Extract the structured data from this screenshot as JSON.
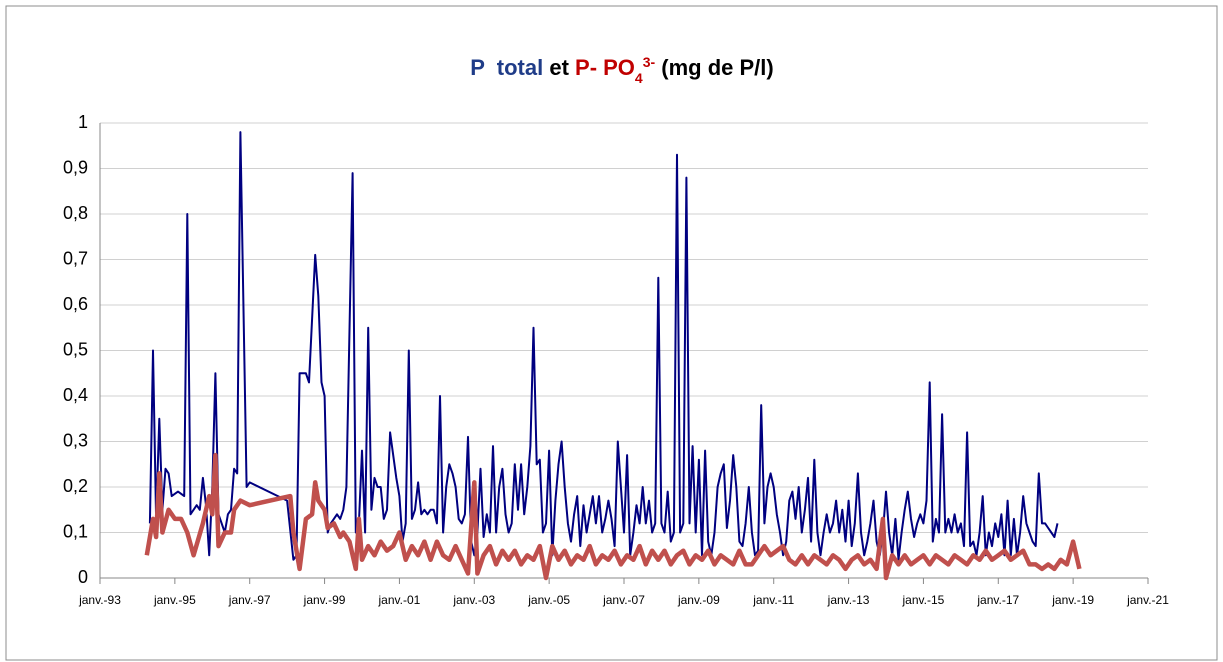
{
  "chart_data": {
    "type": "line",
    "title": [
      {
        "text": "P  total",
        "color": "#1f3c88"
      },
      {
        "text": " et ",
        "color": "#000000"
      },
      {
        "text": "P- PO",
        "color": "#c00000"
      },
      {
        "text": "4",
        "color": "#c00000",
        "shift": "sub"
      },
      {
        "text": "3-",
        "color": "#c00000",
        "shift": "super"
      },
      {
        "text": " (mg de P/l)",
        "color": "#000000"
      }
    ],
    "xlim": [
      "1993-01",
      "2021-01"
    ],
    "xticks": [
      {
        "value": "1993-01",
        "label": "janv.-93"
      },
      {
        "value": "1995-01",
        "label": "janv.-95"
      },
      {
        "value": "1997-01",
        "label": "janv.-97"
      },
      {
        "value": "1999-01",
        "label": "janv.-99"
      },
      {
        "value": "2001-01",
        "label": "janv.-01"
      },
      {
        "value": "2003-01",
        "label": "janv.-03"
      },
      {
        "value": "2005-01",
        "label": "janv.-05"
      },
      {
        "value": "2007-01",
        "label": "janv.-07"
      },
      {
        "value": "2009-01",
        "label": "janv.-09"
      },
      {
        "value": "2011-01",
        "label": "janv.-11"
      },
      {
        "value": "2013-01",
        "label": "janv.-13"
      },
      {
        "value": "2015-01",
        "label": "janv.-15"
      },
      {
        "value": "2017-01",
        "label": "janv.-17"
      },
      {
        "value": "2019-01",
        "label": "janv.-19"
      },
      {
        "value": "2021-01",
        "label": "janv.-21"
      }
    ],
    "ylim": [
      0,
      1
    ],
    "yticks": [
      0,
      {
        "value": 0.1,
        "label": "0,1"
      },
      {
        "value": 0.2,
        "label": "0,2"
      },
      {
        "value": 0.3,
        "label": "0,3"
      },
      {
        "value": 0.4,
        "label": "0,4"
      },
      {
        "value": 0.5,
        "label": "0,5"
      },
      {
        "value": 0.6,
        "label": "0,6"
      },
      {
        "value": 0.7,
        "label": "0,7"
      },
      {
        "value": 0.8,
        "label": "0,8"
      },
      {
        "value": 0.9,
        "label": "0,9"
      },
      1
    ],
    "grid": true,
    "series": [
      {
        "color": "#000080",
        "width": 2,
        "x": [
          "1994-05",
          "1994-06",
          "1994-07",
          "1994-08",
          "1994-09",
          "1994-10",
          "1994-11",
          "1994-12",
          "1995-02",
          "1995-04",
          "1995-05",
          "1995-06",
          "1995-08",
          "1995-09",
          "1995-10",
          "1995-11",
          "1995-12",
          "1996-01",
          "1996-02",
          "1996-03",
          "1996-05",
          "1996-06",
          "1996-07",
          "1996-08",
          "1996-09",
          "1996-10",
          "1996-12",
          "1997-01",
          "1998-01",
          "1998-03",
          "1998-04",
          "1998-05",
          "1998-07",
          "1998-08",
          "1998-10",
          "1998-11",
          "1998-12",
          "1999-01",
          "1999-02",
          "1999-03",
          "1999-05",
          "1999-06",
          "1999-07",
          "1999-08",
          "1999-10",
          "1999-11",
          "1999-12",
          "2000-01",
          "2000-02",
          "2000-03",
          "2000-04",
          "2000-05",
          "2000-06",
          "2000-07",
          "2000-08",
          "2000-09",
          "2000-10",
          "2000-12",
          "2001-01",
          "2001-02",
          "2001-03",
          "2001-04",
          "2001-05",
          "2001-06",
          "2001-07",
          "2001-08",
          "2001-09",
          "2001-10",
          "2001-11",
          "2001-12",
          "2002-01",
          "2002-02",
          "2002-03",
          "2002-04",
          "2002-05",
          "2002-06",
          "2002-07",
          "2002-08",
          "2002-09",
          "2002-10",
          "2002-11",
          "2002-12",
          "2003-01",
          "2003-02",
          "2003-03",
          "2003-04",
          "2003-05",
          "2003-06",
          "2003-07",
          "2003-08",
          "2003-09",
          "2003-10",
          "2003-11",
          "2003-12",
          "2004-01",
          "2004-02",
          "2004-03",
          "2004-04",
          "2004-05",
          "2004-06",
          "2004-07",
          "2004-08",
          "2004-09",
          "2004-10",
          "2004-11",
          "2004-12",
          "2005-01",
          "2005-02",
          "2005-03",
          "2005-04",
          "2005-05",
          "2005-06",
          "2005-07",
          "2005-08",
          "2005-09",
          "2005-10",
          "2005-11",
          "2005-12",
          "2006-01",
          "2006-02",
          "2006-03",
          "2006-04",
          "2006-05",
          "2006-06",
          "2006-07",
          "2006-08",
          "2006-09",
          "2006-10",
          "2006-11",
          "2006-12",
          "2007-01",
          "2007-02",
          "2007-03",
          "2007-04",
          "2007-05",
          "2007-06",
          "2007-07",
          "2007-08",
          "2007-09",
          "2007-10",
          "2007-11",
          "2007-12",
          "2008-01",
          "2008-02",
          "2008-03",
          "2008-04",
          "2008-05",
          "2008-06",
          "2008-07",
          "2008-08",
          "2008-09",
          "2008-10",
          "2008-11",
          "2008-12",
          "2009-01",
          "2009-02",
          "2009-03",
          "2009-04",
          "2009-05",
          "2009-06",
          "2009-07",
          "2009-08",
          "2009-09",
          "2009-10",
          "2009-11",
          "2009-12",
          "2010-01",
          "2010-02",
          "2010-03",
          "2010-04",
          "2010-05",
          "2010-06",
          "2010-07",
          "2010-08",
          "2010-09",
          "2010-10",
          "2010-11",
          "2010-12",
          "2011-01",
          "2011-02",
          "2011-03",
          "2011-04",
          "2011-05",
          "2011-06",
          "2011-07",
          "2011-08",
          "2011-09",
          "2011-10",
          "2011-11",
          "2011-12",
          "2012-01",
          "2012-02",
          "2012-03",
          "2012-04",
          "2012-05",
          "2012-06",
          "2012-07",
          "2012-08",
          "2012-09",
          "2012-10",
          "2012-11",
          "2012-12",
          "2013-01",
          "2013-02",
          "2013-03",
          "2013-04",
          "2013-05",
          "2013-06",
          "2013-07",
          "2013-08",
          "2013-09",
          "2013-10",
          "2013-11",
          "2013-12",
          "2014-01",
          "2014-02",
          "2014-03",
          "2014-04",
          "2014-05",
          "2014-06",
          "2014-07",
          "2014-08",
          "2014-09",
          "2014-10",
          "2014-11",
          "2014-12",
          "2015-01",
          "2015-02",
          "2015-03",
          "2015-04",
          "2015-05",
          "2015-06",
          "2015-07",
          "2015-08",
          "2015-09",
          "2015-10",
          "2015-11",
          "2015-12",
          "2016-01",
          "2016-02",
          "2016-03",
          "2016-04",
          "2016-05",
          "2016-06",
          "2016-07",
          "2016-08",
          "2016-09",
          "2016-10",
          "2016-11",
          "2016-12",
          "2017-01",
          "2017-02",
          "2017-03",
          "2017-04",
          "2017-05",
          "2017-06",
          "2017-07",
          "2017-08",
          "2017-09",
          "2017-10",
          "2017-11",
          "2017-12",
          "2018-01",
          "2018-02",
          "2018-03",
          "2018-04",
          "2018-05",
          "2018-06",
          "2018-07",
          "2018-08"
        ],
        "values": [
          0.12,
          0.5,
          0.13,
          0.35,
          0.15,
          0.24,
          0.23,
          0.18,
          0.19,
          0.18,
          0.8,
          0.14,
          0.16,
          0.15,
          0.22,
          0.16,
          0.05,
          0.2,
          0.45,
          0.14,
          0.1,
          0.14,
          0.15,
          0.24,
          0.23,
          0.98,
          0.2,
          0.21,
          0.17,
          0.04,
          0.05,
          0.45,
          0.45,
          0.43,
          0.71,
          0.62,
          0.43,
          0.4,
          0.1,
          0.12,
          0.14,
          0.13,
          0.15,
          0.2,
          0.89,
          0.1,
          0.12,
          0.28,
          0.1,
          0.55,
          0.15,
          0.22,
          0.2,
          0.2,
          0.13,
          0.15,
          0.32,
          0.22,
          0.18,
          0.08,
          0.12,
          0.5,
          0.13,
          0.15,
          0.21,
          0.14,
          0.15,
          0.14,
          0.15,
          0.15,
          0.12,
          0.4,
          0.1,
          0.2,
          0.25,
          0.23,
          0.2,
          0.13,
          0.12,
          0.14,
          0.31,
          0.08,
          0.05,
          0.1,
          0.24,
          0.09,
          0.14,
          0.1,
          0.29,
          0.1,
          0.2,
          0.24,
          0.14,
          0.1,
          0.12,
          0.25,
          0.15,
          0.25,
          0.14,
          0.2,
          0.29,
          0.55,
          0.25,
          0.26,
          0.1,
          0.12,
          0.28,
          0.05,
          0.17,
          0.25,
          0.3,
          0.2,
          0.12,
          0.08,
          0.14,
          0.18,
          0.07,
          0.16,
          0.1,
          0.14,
          0.18,
          0.12,
          0.18,
          0.1,
          0.13,
          0.17,
          0.13,
          0.07,
          0.3,
          0.2,
          0.1,
          0.27,
          0.05,
          0.1,
          0.16,
          0.12,
          0.2,
          0.12,
          0.17,
          0.1,
          0.12,
          0.66,
          0.12,
          0.1,
          0.19,
          0.08,
          0.1,
          0.93,
          0.1,
          0.12,
          0.88,
          0.12,
          0.29,
          0.1,
          0.26,
          0.05,
          0.28,
          0.08,
          0.05,
          0.1,
          0.2,
          0.23,
          0.25,
          0.11,
          0.17,
          0.27,
          0.2,
          0.08,
          0.07,
          0.12,
          0.2,
          0.1,
          0.05,
          0.06,
          0.38,
          0.12,
          0.2,
          0.23,
          0.2,
          0.14,
          0.1,
          0.05,
          0.08,
          0.17,
          0.19,
          0.13,
          0.2,
          0.1,
          0.15,
          0.22,
          0.08,
          0.26,
          0.1,
          0.05,
          0.1,
          0.14,
          0.1,
          0.12,
          0.17,
          0.1,
          0.15,
          0.08,
          0.17,
          0.07,
          0.12,
          0.23,
          0.1,
          0.05,
          0.08,
          0.12,
          0.17,
          0.08,
          0.05,
          0.1,
          0.19,
          0.1,
          0.05,
          0.13,
          0.04,
          0.1,
          0.15,
          0.19,
          0.13,
          0.09,
          0.12,
          0.14,
          0.12,
          0.17,
          0.43,
          0.08,
          0.13,
          0.1,
          0.36,
          0.1,
          0.13,
          0.1,
          0.14,
          0.1,
          0.12,
          0.07,
          0.32,
          0.07,
          0.08,
          0.05,
          0.1,
          0.18,
          0.05,
          0.1,
          0.07,
          0.12,
          0.09,
          0.14,
          0.05,
          0.17,
          0.05,
          0.13,
          0.05,
          0.1,
          0.18,
          0.12,
          0.1,
          0.08,
          0.07,
          0.23,
          0.12,
          0.12,
          0.11,
          0.1,
          0.09,
          0.12
        ]
      },
      {
        "color": "#c0504d",
        "width": 4.5,
        "x": [
          "1994-04",
          "1994-06",
          "1994-07",
          "1994-08",
          "1994-09",
          "1994-11",
          "1995-01",
          "1995-03",
          "1995-05",
          "1995-07",
          "1995-10",
          "1995-12",
          "1996-01",
          "1996-02",
          "1996-03",
          "1996-05",
          "1996-07",
          "1996-08",
          "1996-10",
          "1997-01",
          "1998-02",
          "1998-03",
          "1998-04",
          "1998-05",
          "1998-07",
          "1998-09",
          "1998-10",
          "1998-11",
          "1999-01",
          "1999-02",
          "1999-04",
          "1999-06",
          "1999-07",
          "1999-09",
          "1999-11",
          "1999-12",
          "2000-01",
          "2000-03",
          "2000-05",
          "2000-07",
          "2000-09",
          "2000-11",
          "2001-01",
          "2001-03",
          "2001-05",
          "2001-07",
          "2001-09",
          "2001-11",
          "2002-01",
          "2002-03",
          "2002-05",
          "2002-07",
          "2002-09",
          "2002-11",
          "2003-01",
          "2003-02",
          "2003-04",
          "2003-06",
          "2003-08",
          "2003-10",
          "2003-12",
          "2004-02",
          "2004-04",
          "2004-06",
          "2004-08",
          "2004-10",
          "2004-12",
          "2005-02",
          "2005-04",
          "2005-06",
          "2005-08",
          "2005-10",
          "2005-12",
          "2006-02",
          "2006-04",
          "2006-06",
          "2006-08",
          "2006-10",
          "2006-12",
          "2007-02",
          "2007-04",
          "2007-06",
          "2007-08",
          "2007-10",
          "2007-12",
          "2008-02",
          "2008-04",
          "2008-06",
          "2008-08",
          "2008-10",
          "2008-12",
          "2009-02",
          "2009-04",
          "2009-06",
          "2009-08",
          "2009-10",
          "2009-12",
          "2010-02",
          "2010-04",
          "2010-06",
          "2010-08",
          "2010-10",
          "2010-12",
          "2011-02",
          "2011-04",
          "2011-06",
          "2011-08",
          "2011-10",
          "2011-12",
          "2012-02",
          "2012-04",
          "2012-06",
          "2012-08",
          "2012-10",
          "2012-12",
          "2013-02",
          "2013-04",
          "2013-06",
          "2013-08",
          "2013-10",
          "2013-12",
          "2014-01",
          "2014-03",
          "2014-05",
          "2014-07",
          "2014-09",
          "2014-11",
          "2015-01",
          "2015-03",
          "2015-05",
          "2015-07",
          "2015-09",
          "2015-11",
          "2016-01",
          "2016-03",
          "2016-05",
          "2016-07",
          "2016-09",
          "2016-11",
          "2017-01",
          "2017-03",
          "2017-05",
          "2017-07",
          "2017-09",
          "2017-11",
          "2018-01",
          "2018-03",
          "2018-05",
          "2018-07",
          "2018-09",
          "2018-11",
          "2019-01",
          "2019-03"
        ],
        "values": [
          0.05,
          0.13,
          0.09,
          0.23,
          0.1,
          0.15,
          0.13,
          0.13,
          0.1,
          0.05,
          0.12,
          0.18,
          0.14,
          0.27,
          0.07,
          0.1,
          0.1,
          0.15,
          0.17,
          0.16,
          0.18,
          0.1,
          0.06,
          0.02,
          0.13,
          0.14,
          0.21,
          0.17,
          0.15,
          0.11,
          0.12,
          0.09,
          0.1,
          0.08,
          0.02,
          0.13,
          0.04,
          0.07,
          0.05,
          0.08,
          0.06,
          0.07,
          0.1,
          0.04,
          0.07,
          0.05,
          0.08,
          0.04,
          0.08,
          0.05,
          0.04,
          0.07,
          0.04,
          0.01,
          0.21,
          0.01,
          0.05,
          0.07,
          0.03,
          0.06,
          0.04,
          0.06,
          0.03,
          0.05,
          0.04,
          0.07,
          0,
          0.07,
          0.04,
          0.06,
          0.03,
          0.05,
          0.04,
          0.07,
          0.03,
          0.05,
          0.04,
          0.06,
          0.03,
          0.05,
          0.04,
          0.07,
          0.03,
          0.06,
          0.04,
          0.06,
          0.03,
          0.05,
          0.06,
          0.03,
          0.05,
          0.04,
          0.06,
          0.03,
          0.05,
          0.04,
          0.03,
          0.06,
          0.03,
          0.03,
          0.05,
          0.07,
          0.05,
          0.06,
          0.07,
          0.04,
          0.03,
          0.05,
          0.03,
          0.05,
          0.04,
          0.03,
          0.05,
          0.04,
          0.02,
          0.04,
          0.05,
          0.03,
          0.04,
          0.02,
          0.13,
          0,
          0.05,
          0.03,
          0.05,
          0.03,
          0.04,
          0.05,
          0.03,
          0.05,
          0.04,
          0.03,
          0.05,
          0.04,
          0.03,
          0.05,
          0.04,
          0.06,
          0.04,
          0.05,
          0.06,
          0.04,
          0.05,
          0.06,
          0.03,
          0.03,
          0.02,
          0.03,
          0.02,
          0.04,
          0.03,
          0.08,
          0.02
        ]
      }
    ]
  }
}
